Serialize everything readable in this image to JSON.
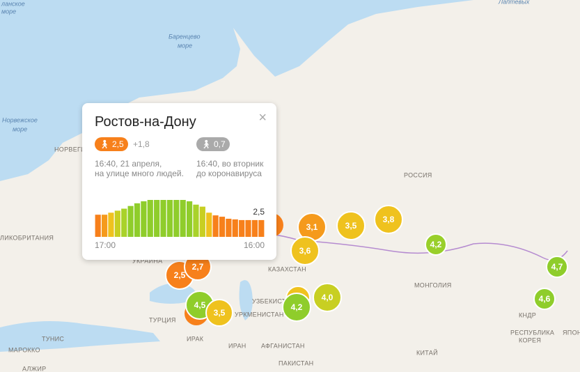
{
  "seas": [
    "ланское",
    "море",
    "Баренцево",
    "море",
    "Норвежское",
    "море",
    "Лаптевых"
  ],
  "countries": [
    "НОРВЕГИЯ",
    "ЛИКОБРИТАНИЯ",
    "РОССИЯ",
    "УКРАИНА",
    "КАЗАХСТАН",
    "МОНГОЛИЯ",
    "УЗБЕКИСТ",
    "УРКМЕНИСТАН",
    "ТУРЦИЯ",
    "ИРАК",
    "ИРАН",
    "АФГАНИСТАН",
    "ПАКИСТАН",
    "КИТАЙ",
    "КНДР",
    "РЕСПУБЛИКА",
    "КОРЕЯ",
    "ЯПОНИ",
    "ТУНИС",
    "МАРОККО",
    "АЛЖИР"
  ],
  "bubbles": [
    {
      "label": "2,5",
      "color": "#f7801b"
    },
    {
      "label": "2,7",
      "color": "#f7801b"
    },
    {
      "label": "3,1",
      "color": "#f59a1c"
    },
    {
      "label": "3,5",
      "color": "#efc21e"
    },
    {
      "label": "3,8",
      "color": "#efc21e"
    },
    {
      "label": "3,6",
      "color": "#efc21e"
    },
    {
      "label": "4,2",
      "color": "#99cf2a"
    },
    {
      "label": "4,0",
      "color": "#c8cf22"
    },
    {
      "label": "4,2",
      "color": "#8fcd2b"
    },
    {
      "label": "4,5",
      "color": "#8fcd2b"
    },
    {
      "label": "3,5",
      "color": "#efc21e"
    },
    {
      "label": "4,7",
      "color": "#8fcd2b"
    },
    {
      "label": "4,6",
      "color": "#8fcd2b"
    }
  ],
  "popup": {
    "title": "Ростов-на-Дону",
    "current": "2,5",
    "delta": "+1,8",
    "baseline": "0,7",
    "current_note": [
      "16:40, 21 апреля,",
      "на улице много людей."
    ],
    "baseline_note": [
      "16:40, во вторник",
      "до коронавируса"
    ],
    "chart": {
      "values": [
        3.3,
        3.3,
        3.6,
        3.9,
        4.2,
        4.6,
        5.0,
        5.3,
        5.5,
        5.5,
        5.5,
        5.5,
        5.5,
        5.5,
        5.3,
        4.8,
        4.5,
        3.6,
        3.2,
        3.0,
        2.7,
        2.6,
        2.5,
        2.5,
        2.5,
        2.5
      ],
      "colors": [
        "#f7801b",
        "#f59a1c",
        "#efc21e",
        "#c8cf22",
        "#a9d22a",
        "#8fcd2b",
        "#8fcd2b",
        "#8fcd2b",
        "#8fcd2b",
        "#8fcd2b",
        "#8fcd2b",
        "#8fcd2b",
        "#8fcd2b",
        "#8fcd2b",
        "#8fcd2b",
        "#a9d22a",
        "#c8cf22",
        "#efc21e",
        "#f7801b",
        "#f7801b",
        "#f7801b",
        "#f7801b",
        "#f7801b",
        "#f7801b",
        "#f7801b",
        "#f7801b"
      ],
      "value_label": "2,5",
      "start": "17:00",
      "end": "16:00"
    }
  }
}
